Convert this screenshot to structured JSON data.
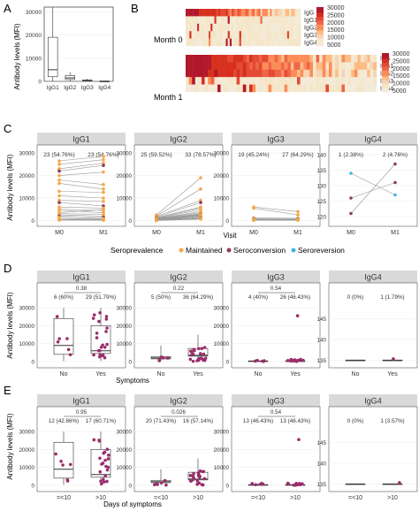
{
  "colors": {
    "strip": "#d9d9d9",
    "grid": "#ebebeb",
    "panel_border": "#555555",
    "maintained": "#f5a849",
    "seroconversion": "#8e3a5e",
    "seroreversion": "#41b3e0",
    "dot_purple": "#9b2d6b",
    "heat_high": "#d7191c",
    "heat_low": "#f5e6c8"
  },
  "panel_A": {
    "letter": "A",
    "ylabel": "Antibody levels (MFI)",
    "categories": [
      "IgG1",
      "IgG2",
      "IgG3",
      "IgG4"
    ],
    "yticks": [
      "0",
      "10000",
      "20000",
      "30000"
    ],
    "ylim": [
      0,
      32000
    ]
  },
  "panel_B": {
    "letter": "B",
    "month0_label": "Month 0",
    "month1_label": "Month 1",
    "rows": [
      "IgG",
      "IgG1",
      "IgG2",
      "IgG3",
      "IgG4"
    ],
    "legend_ticks": [
      "30000",
      "25000",
      "20000",
      "15000",
      "10000",
      "5000"
    ]
  },
  "panel_C": {
    "letter": "C",
    "ylabel": "Antibody levels (MFI)",
    "xlabel": "Visit",
    "xticks": [
      "M0",
      "M1"
    ],
    "legend_title": "Seroprevalence",
    "legend_items": [
      "Maintained",
      "Seroconversion",
      "Seroreversion"
    ],
    "facets": [
      {
        "title": "IgG1",
        "ann_left": "23 (54.76%)",
        "ann_right": "23 (54.76%)",
        "yticks": [
          "0",
          "10000",
          "20000",
          "30000"
        ]
      },
      {
        "title": "IgG2",
        "ann_left": "25 (59.52%)",
        "ann_right": "33 (78.57%)",
        "yticks": [
          "0",
          "10000",
          "20000",
          "30000"
        ]
      },
      {
        "title": "IgG3",
        "ann_left": "19 (45.24%)",
        "ann_right": "27 (64.29%)",
        "yticks": [
          "0",
          "10000",
          "20000",
          "30000"
        ]
      },
      {
        "title": "IgG4",
        "ann_left": "1 (2.38%)",
        "ann_right": "2 (4.76%)",
        "yticks": [
          "120",
          "125",
          "130",
          "135",
          "140"
        ]
      }
    ]
  },
  "panel_D": {
    "letter": "D",
    "ylabel": "Antibody levels (MFI)",
    "xlabel": "Symptoms",
    "xticks": [
      "No",
      "Yes"
    ],
    "facets": [
      {
        "title": "IgG1",
        "ann_left": "6 (60%)",
        "ann_right": "29 (51.79%)",
        "pval": "0.38",
        "yticks": [
          "0",
          "10000",
          "20000",
          "30000"
        ]
      },
      {
        "title": "IgG2",
        "ann_left": "5 (50%)",
        "ann_right": "36 (64.29%)",
        "pval": "0.22",
        "yticks": [
          "0",
          "10000",
          "20000",
          "30000"
        ]
      },
      {
        "title": "IgG3",
        "ann_left": "4 (40%)",
        "ann_right": "26 (46.43%)",
        "pval": "0.54",
        "yticks": [
          "0",
          "10000",
          "20000",
          "30000"
        ]
      },
      {
        "title": "IgG4",
        "ann_left": "0 (0%)",
        "ann_right": "1 (1.79%)",
        "pval": "",
        "yticks": [
          "135",
          "140",
          "145"
        ]
      }
    ]
  },
  "panel_E": {
    "letter": "E",
    "ylabel": "Antibody levels (MFI)",
    "xlabel": "Days of symptoms",
    "xticks": [
      "=<10",
      ">10"
    ],
    "facets": [
      {
        "title": "IgG1",
        "ann_left": "12 (42.86%)",
        "ann_right": "17 (60.71%)",
        "pval": "0.95",
        "yticks": [
          "0",
          "10000",
          "20000",
          "30000"
        ]
      },
      {
        "title": "IgG2",
        "ann_left": "20 (71.43%)",
        "ann_right": "16 (57.14%)",
        "pval": "0.026",
        "yticks": [
          "0",
          "10000",
          "20000",
          "30000"
        ]
      },
      {
        "title": "IgG3",
        "ann_left": "13 (46.43%)",
        "ann_right": "13 (46.43%)",
        "pval": "0.54",
        "yticks": [
          "0",
          "10000",
          "20000",
          "30000"
        ]
      },
      {
        "title": "IgG4",
        "ann_left": "0 (0%)",
        "ann_right": "1 (3.57%)",
        "pval": "",
        "yticks": [
          "135",
          "140",
          "145"
        ]
      }
    ]
  },
  "chart_data": [
    {
      "type": "box",
      "panel": "A",
      "categories": [
        "IgG1",
        "IgG2",
        "IgG3",
        "IgG4"
      ],
      "boxes": [
        {
          "min": 0,
          "q1": 2000,
          "median": 5000,
          "q3": 19000,
          "max": 33000
        },
        {
          "min": 0,
          "q1": 800,
          "median": 1500,
          "q3": 2500,
          "max": 4000
        },
        {
          "min": 0,
          "q1": 100,
          "median": 300,
          "q3": 600,
          "max": 1200
        },
        {
          "min": 0,
          "q1": 20,
          "median": 60,
          "q3": 120,
          "max": 250
        }
      ],
      "ylabel": "Antibody levels (MFI)",
      "ylim": [
        0,
        32000
      ],
      "grid": true
    },
    {
      "type": "heatmap",
      "panel": "B",
      "rows": [
        "IgG",
        "IgG1",
        "IgG2",
        "IgG3",
        "IgG4"
      ],
      "blocks": [
        "Month 0",
        "Month 1"
      ],
      "color_range": [
        5000,
        30000
      ]
    },
    {
      "type": "line",
      "panel": "C",
      "x": [
        "M0",
        "M1"
      ],
      "facets": [
        "IgG1",
        "IgG2",
        "IgG3",
        "IgG4"
      ],
      "pairs": {
        "IgG1": [
          [
            26500,
            28500
          ],
          [
            25000,
            27000
          ],
          [
            23000,
            25500
          ],
          [
            22000,
            24500
          ],
          [
            20000,
            21500
          ],
          [
            18000,
            16000
          ],
          [
            16500,
            14000
          ],
          [
            13000,
            12500
          ],
          [
            11000,
            10000
          ],
          [
            9000,
            8500
          ],
          [
            8000,
            6500
          ],
          [
            6000,
            5500
          ],
          [
            5000,
            4500
          ],
          [
            4500,
            3500
          ],
          [
            3500,
            4800
          ],
          [
            3000,
            2800
          ],
          [
            2500,
            2000
          ],
          [
            2000,
            1500
          ],
          [
            1500,
            900
          ],
          [
            1000,
            600
          ],
          [
            500,
            400
          ],
          [
            300,
            200
          ],
          [
            200,
            150
          ]
        ],
        "IgG2": [
          [
            2500,
            19000
          ],
          [
            2000,
            14000
          ],
          [
            1800,
            9000
          ],
          [
            1500,
            8000
          ],
          [
            1300,
            6000
          ],
          [
            1200,
            5500
          ],
          [
            1000,
            4800
          ],
          [
            900,
            4000
          ],
          [
            800,
            3500
          ],
          [
            700,
            3000
          ],
          [
            600,
            2800
          ],
          [
            500,
            2600
          ],
          [
            400,
            2400
          ],
          [
            300,
            2200
          ],
          [
            200,
            2000
          ],
          [
            150,
            1800
          ],
          [
            100,
            1500
          ],
          [
            80,
            1200
          ],
          [
            60,
            1000
          ],
          [
            40,
            800
          ],
          [
            20,
            600
          ]
        ],
        "IgG3": [
          [
            6000,
            4000
          ],
          [
            5500,
            2500
          ],
          [
            1200,
            1000
          ],
          [
            800,
            700
          ],
          [
            600,
            500
          ],
          [
            400,
            300
          ],
          [
            300,
            250
          ],
          [
            200,
            150
          ],
          [
            100,
            120
          ]
        ],
        "IgG4": [
          [
            121,
            137
          ],
          [
            126,
            131
          ],
          [
            134,
            127
          ]
        ]
      },
      "ylabel": "Antibody levels (MFI)",
      "xlabel": "Visit",
      "legend": [
        "Maintained",
        "Seroconversion",
        "Seroreversion"
      ]
    },
    {
      "type": "box",
      "panel": "D",
      "x": [
        "No",
        "Yes"
      ],
      "facets": [
        "IgG1",
        "IgG2",
        "IgG3",
        "IgG4"
      ],
      "p_values": [
        "0.38",
        "0.22",
        "0.54",
        ""
      ],
      "ylabel": "Antibody levels (MFI)",
      "xlabel": "Symptoms"
    },
    {
      "type": "box",
      "panel": "E",
      "x": [
        "=<10",
        ">10"
      ],
      "facets": [
        "IgG1",
        "IgG2",
        "IgG3",
        "IgG4"
      ],
      "p_values": [
        "0.95",
        "0.026",
        "0.54",
        ""
      ],
      "ylabel": "Antibody levels (MFI)",
      "xlabel": "Days of symptoms"
    }
  ]
}
